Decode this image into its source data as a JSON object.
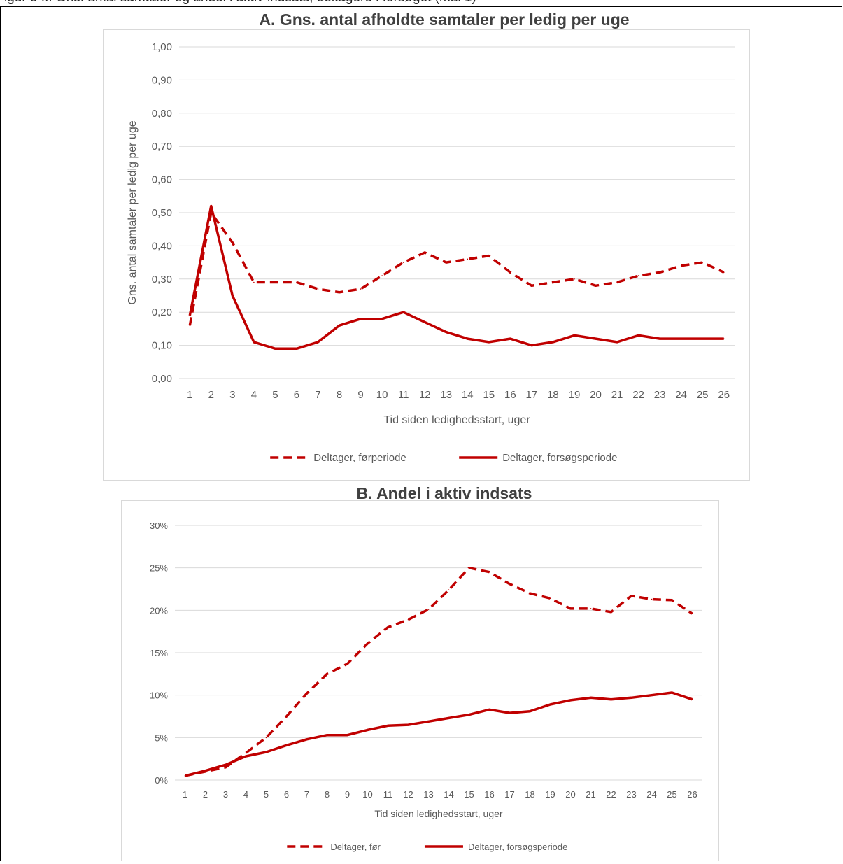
{
  "page": {
    "header_text": "igur 5 ... Gns. antal samtaler og andel i aktiv indsats, deltagere i forsøget (mål 1)"
  },
  "colors": {
    "series": "#c00000",
    "grid": "#d9d9d9",
    "tick_text": "#595959",
    "title": "#404040"
  },
  "chart_data": [
    {
      "type": "line",
      "title": "A.   Gns. antal afholdte samtaler per ledig per uge",
      "xlabel": "Tid siden ledighedsstart, uger",
      "ylabel": "Gns. antal samtaler per ledig per uge",
      "x": [
        "1",
        "2",
        "3",
        "4",
        "5",
        "6",
        "7",
        "8",
        "9",
        "10",
        "11",
        "12",
        "13",
        "14",
        "15",
        "16",
        "17",
        "18",
        "19",
        "20",
        "21",
        "22",
        "23",
        "24",
        "25",
        "26"
      ],
      "ylim": [
        0,
        1.0
      ],
      "yticks": [
        "0,00",
        "0,10",
        "0,20",
        "0,30",
        "0,40",
        "0,50",
        "0,60",
        "0,70",
        "0,80",
        "0,90",
        "1,00"
      ],
      "grid": true,
      "legend_position": "bottom",
      "series": [
        {
          "name": "Deltager, førperiode",
          "style": "dashed",
          "values": [
            0.16,
            0.5,
            0.41,
            0.29,
            0.29,
            0.29,
            0.27,
            0.26,
            0.27,
            0.31,
            0.35,
            0.38,
            0.35,
            0.36,
            0.37,
            0.32,
            0.28,
            0.29,
            0.3,
            0.28,
            0.29,
            0.31,
            0.32,
            0.34,
            0.35,
            0.32
          ]
        },
        {
          "name": "Deltager, forsøgsperiode",
          "style": "solid",
          "values": [
            0.19,
            0.52,
            0.25,
            0.11,
            0.09,
            0.09,
            0.11,
            0.16,
            0.18,
            0.18,
            0.2,
            0.17,
            0.14,
            0.12,
            0.11,
            0.12,
            0.1,
            0.11,
            0.13,
            0.12,
            0.11,
            0.13,
            0.12,
            0.12,
            0.12,
            0.12
          ]
        }
      ]
    },
    {
      "type": "line",
      "title": "B.   Andel i aktiv indsats",
      "xlabel": "Tid siden ledighedsstart, uger",
      "ylabel": "",
      "x": [
        "1",
        "2",
        "3",
        "4",
        "5",
        "6",
        "7",
        "8",
        "9",
        "10",
        "11",
        "12",
        "13",
        "14",
        "15",
        "16",
        "17",
        "18",
        "19",
        "20",
        "21",
        "22",
        "23",
        "24",
        "25",
        "26"
      ],
      "ylim": [
        0,
        30
      ],
      "yticks": [
        "0%",
        "5%",
        "10%",
        "15%",
        "20%",
        "25%",
        "30%"
      ],
      "grid": true,
      "legend_position": "bottom",
      "series": [
        {
          "name": "Deltager, før",
          "style": "dashed",
          "values": [
            0.5,
            1.0,
            1.5,
            3.2,
            5.0,
            7.5,
            10.2,
            12.5,
            13.7,
            16.1,
            18.0,
            18.9,
            20.1,
            22.4,
            25.0,
            24.5,
            23.1,
            22.0,
            21.4,
            20.2,
            20.2,
            19.8,
            21.7,
            21.3,
            21.2,
            19.6
          ]
        },
        {
          "name": "Deltager, forsøgsperiode",
          "style": "solid",
          "values": [
            0.5,
            1.1,
            1.8,
            2.8,
            3.3,
            4.1,
            4.8,
            5.3,
            5.3,
            5.9,
            6.4,
            6.5,
            6.9,
            7.3,
            7.7,
            8.3,
            7.9,
            8.1,
            8.9,
            9.4,
            9.7,
            9.5,
            9.7,
            10.0,
            10.3,
            9.5
          ]
        }
      ]
    }
  ]
}
